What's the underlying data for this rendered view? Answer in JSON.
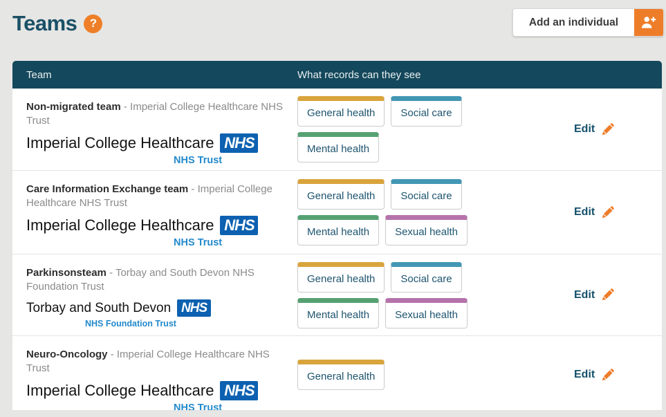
{
  "page": {
    "title": "Teams",
    "help_glyph": "?",
    "add_individual_label": "Add an individual"
  },
  "table": {
    "columns": [
      "Team",
      "What records can they see"
    ],
    "separator": "-",
    "edit_label": "Edit",
    "record_colors": {
      "General health": "#d9a43c",
      "Social care": "#4297b4",
      "Mental health": "#56a172",
      "Sexual health": "#b573ab"
    },
    "rows": [
      {
        "team_name": "Non-migrated team",
        "org_name": "Imperial College Healthcare NHS Trust",
        "logo": {
          "variant": "imperial",
          "org_text": "Imperial College Healthcare",
          "nhs_glyph": "NHS",
          "descriptor": "NHS Trust"
        },
        "records": [
          "General health",
          "Social care",
          "Mental health"
        ]
      },
      {
        "team_name": "Care Information Exchange team",
        "org_name": "Imperial College Healthcare NHS Trust",
        "logo": {
          "variant": "imperial",
          "org_text": "Imperial College Healthcare",
          "nhs_glyph": "NHS",
          "descriptor": "NHS Trust"
        },
        "records": [
          "General health",
          "Social care",
          "Mental health",
          "Sexual health"
        ]
      },
      {
        "team_name": "Parkinsonsteam",
        "org_name": "Torbay and South Devon NHS Foundation Trust",
        "logo": {
          "variant": "torbay",
          "org_text": "Torbay and South Devon",
          "nhs_glyph": "NHS",
          "descriptor": "NHS Foundation Trust"
        },
        "records": [
          "General health",
          "Social care",
          "Mental health",
          "Sexual health"
        ]
      },
      {
        "team_name": "Neuro-Oncology",
        "org_name": "Imperial College Healthcare NHS Trust",
        "logo": {
          "variant": "imperial",
          "org_text": "Imperial College Healthcare",
          "nhs_glyph": "NHS",
          "descriptor": "NHS Trust"
        },
        "records": [
          "General health"
        ]
      }
    ]
  },
  "colors": {
    "accent_orange": "#ee7d2a",
    "table_header_bg": "#14485c",
    "nhs_blue": "#0d61b0",
    "nhs_descriptor_blue": "#2289cb",
    "edit_link": "#14506b",
    "page_bg": "#e6e6e4"
  }
}
